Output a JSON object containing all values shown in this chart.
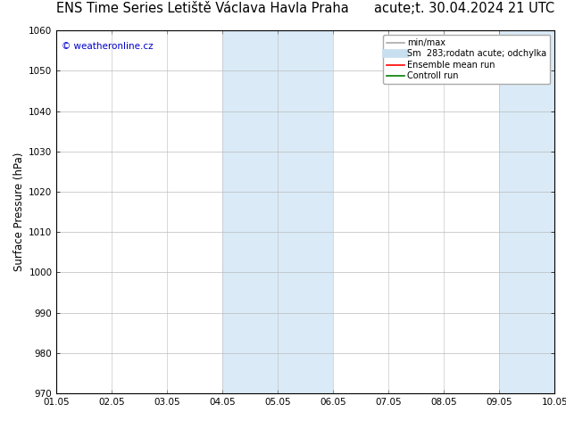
{
  "title_left": "ENS Time Series Letiště Václava Havla Praha",
  "title_right": "acute;t. 30.04.2024 21 UTC",
  "ylabel": "Surface Pressure (hPa)",
  "ylim": [
    970,
    1060
  ],
  "yticks": [
    970,
    980,
    990,
    1000,
    1010,
    1020,
    1030,
    1040,
    1050,
    1060
  ],
  "xtick_labels": [
    "01.05",
    "02.05",
    "03.05",
    "04.05",
    "05.05",
    "06.05",
    "07.05",
    "08.05",
    "09.05",
    "10.05"
  ],
  "shaded_regions": [
    {
      "xstart": 3,
      "xend": 5,
      "color": "#daeaf7"
    },
    {
      "xstart": 8,
      "xend": 9.6,
      "color": "#daeaf7"
    }
  ],
  "watermark": "© weatheronline.cz",
  "watermark_color": "#0000cc",
  "legend_entries": [
    {
      "label": "min/max",
      "color": "#aaaaaa",
      "lw": 1.2
    },
    {
      "label": "Sm  283;rodatn acute; odchylka",
      "color": "#c8dff0",
      "lw": 7
    },
    {
      "label": "Ensemble mean run",
      "color": "red",
      "lw": 1.2
    },
    {
      "label": "Controll run",
      "color": "green",
      "lw": 1.2
    }
  ],
  "bg_color": "#ffffff",
  "plot_bg_color": "#ffffff",
  "border_color": "#000000",
  "grid_color": "#bbbbbb",
  "title_fontsize": 10.5,
  "tick_fontsize": 7.5,
  "ylabel_fontsize": 8.5,
  "watermark_fontsize": 7.5,
  "legend_fontsize": 7
}
